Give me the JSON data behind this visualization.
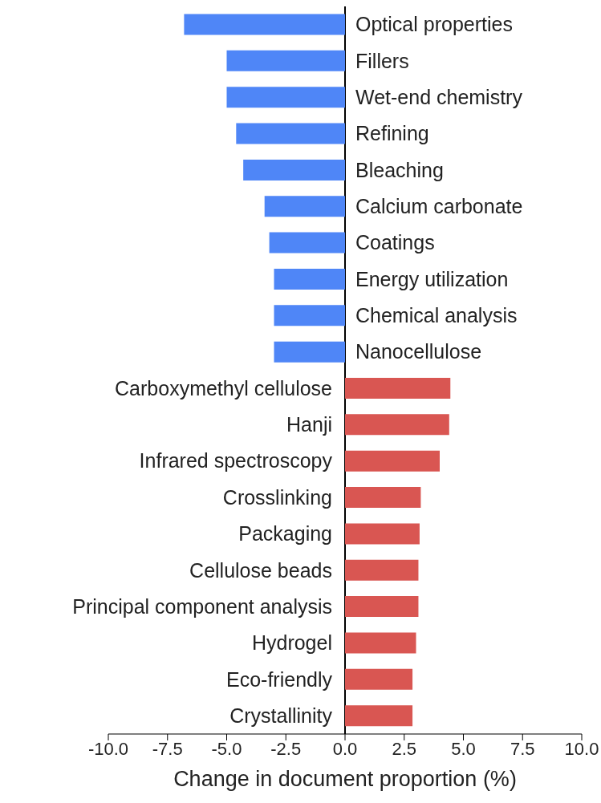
{
  "chart_data": {
    "type": "bar",
    "orientation": "horizontal",
    "xlabel": "Change in document proportion (%)",
    "categories": [
      "Optical properties",
      "Fillers",
      "Wet-end chemistry",
      "Refining",
      "Bleaching",
      "Calcium carbonate",
      "Coatings",
      "Energy utilization",
      "Chemical analysis",
      "Nanocellulose",
      "Carboxymethyl cellulose",
      "Hanji",
      "Infrared spectroscopy",
      "Crosslinking",
      "Packaging",
      "Cellulose beads",
      "Principal component analysis",
      "Hydrogel",
      "Eco-friendly",
      "Crystallinity"
    ],
    "values": [
      -6.8,
      -5.0,
      -5.0,
      -4.6,
      -4.3,
      -3.4,
      -3.2,
      -3.0,
      -3.0,
      -3.0,
      4.45,
      4.4,
      4.0,
      3.2,
      3.15,
      3.1,
      3.1,
      3.0,
      2.85,
      2.85
    ],
    "colors": [
      "#4f86f7",
      "#4f86f7",
      "#4f86f7",
      "#4f86f7",
      "#4f86f7",
      "#4f86f7",
      "#4f86f7",
      "#4f86f7",
      "#4f86f7",
      "#4f86f7",
      "#d95652",
      "#d95652",
      "#d95652",
      "#d95652",
      "#d95652",
      "#d95652",
      "#d95652",
      "#d95652",
      "#d95652",
      "#d95652"
    ],
    "xlim": [
      -10,
      10
    ],
    "xticks": [
      {
        "value": -10,
        "label": "-10.0"
      },
      {
        "value": -7.5,
        "label": "-7.5"
      },
      {
        "value": -5,
        "label": "-5.0"
      },
      {
        "value": -2.5,
        "label": "-2.5"
      },
      {
        "value": 0,
        "label": "0.0"
      },
      {
        "value": 2.5,
        "label": "2.5"
      },
      {
        "value": 5,
        "label": "5.0"
      },
      {
        "value": 7.5,
        "label": "7.5"
      },
      {
        "value": 10,
        "label": "10.0"
      }
    ],
    "grid": false,
    "legend": false
  }
}
